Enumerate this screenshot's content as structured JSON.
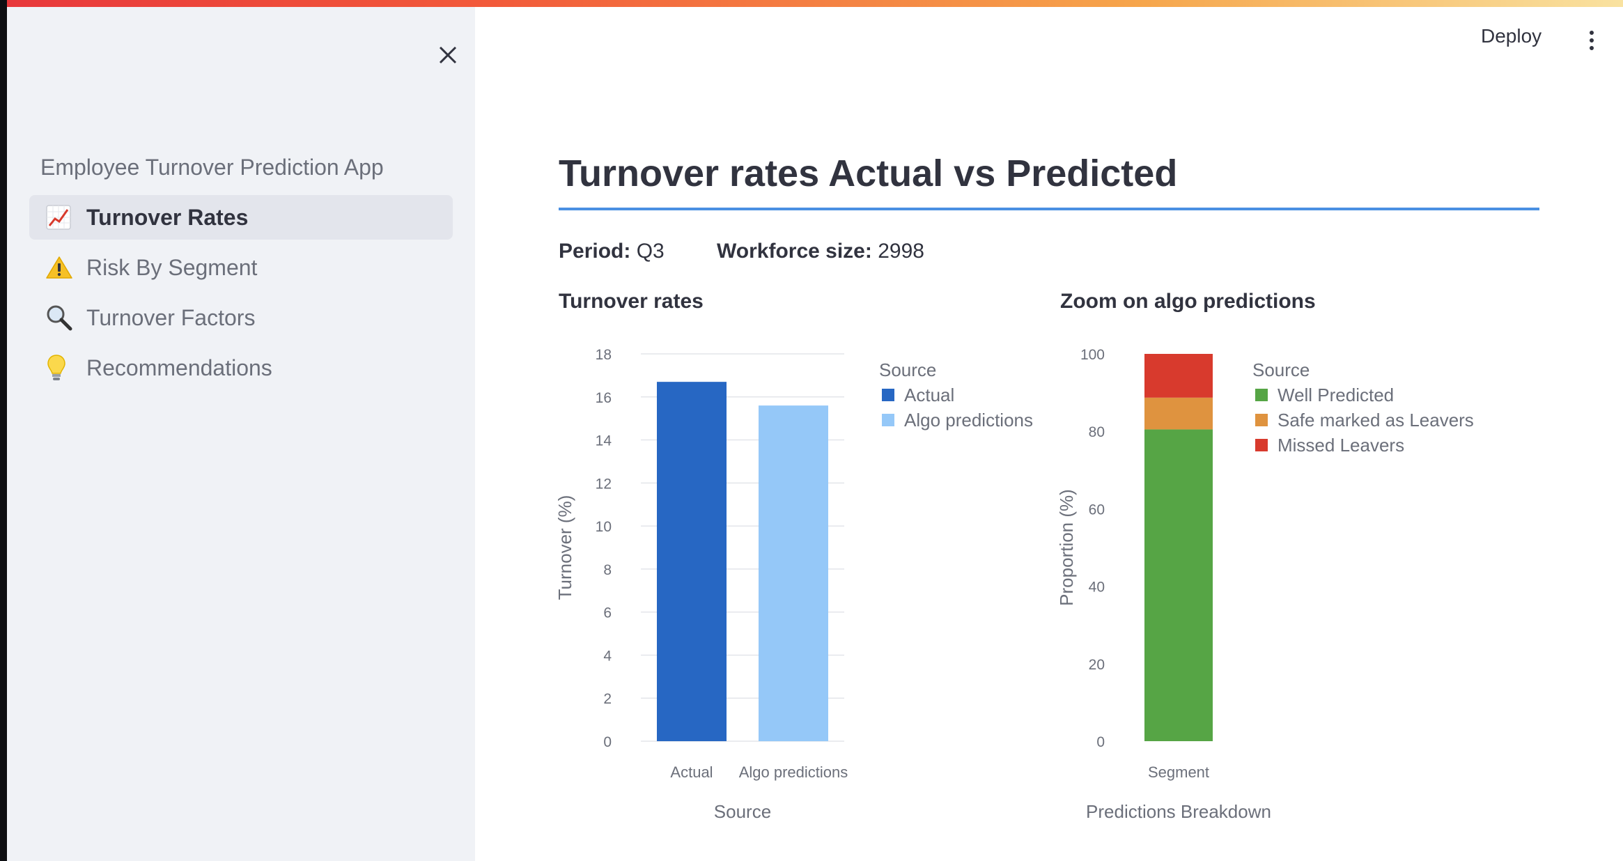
{
  "sidebar": {
    "app_title": "Employee Turnover Prediction App",
    "items": [
      {
        "icon": "chart-increasing-icon",
        "label": "Turnover Rates",
        "active": true
      },
      {
        "icon": "warning-icon",
        "label": "Risk By Segment",
        "active": false
      },
      {
        "icon": "magnifier-icon",
        "label": "Turnover Factors",
        "active": false
      },
      {
        "icon": "lightbulb-icon",
        "label": "Recommendations",
        "active": false
      }
    ]
  },
  "header": {
    "deploy_label": "Deploy"
  },
  "main": {
    "title": "Turnover rates Actual vs Predicted",
    "period_label": "Period:",
    "period_value": "Q3",
    "workforce_label": "Workforce size:",
    "workforce_value": "2998",
    "left_chart_title": "Turnover rates",
    "right_chart_title": "Zoom on algo predictions"
  },
  "colors": {
    "accent_rule": "#4a90e2",
    "actual": "#2767c3",
    "algo": "#95c8f8",
    "well_predicted": "#56a545",
    "safe_marked": "#df933f",
    "missed": "#d83a2d"
  },
  "chart_data": [
    {
      "type": "bar",
      "title": "Turnover rates",
      "categories": [
        "Actual",
        "Algo predictions"
      ],
      "values": [
        16.7,
        15.6
      ],
      "xlabel": "Source",
      "ylabel": "Turnover (%)",
      "ylim": [
        0,
        18
      ],
      "yticks": [
        0,
        2,
        4,
        6,
        8,
        10,
        12,
        14,
        16,
        18
      ],
      "grid": true,
      "legend": {
        "title": "Source",
        "entries": [
          "Actual",
          "Algo predictions"
        ],
        "placement": "right"
      }
    },
    {
      "type": "bar",
      "title": "Zoom on algo predictions",
      "stacked": true,
      "categories": [
        "Segment"
      ],
      "series": [
        {
          "name": "Well Predicted",
          "values": [
            80.5
          ]
        },
        {
          "name": "Safe marked as Leavers",
          "values": [
            8.2
          ]
        },
        {
          "name": "Missed Leavers",
          "values": [
            11.3
          ]
        }
      ],
      "xlabel": "Predictions Breakdown",
      "ylabel": "Proportion (%)",
      "ylim": [
        0,
        100
      ],
      "yticks": [
        0,
        20,
        40,
        60,
        80,
        100
      ],
      "grid": false,
      "legend": {
        "title": "Source",
        "entries": [
          "Well Predicted",
          "Safe marked as Leavers",
          "Missed Leavers"
        ],
        "placement": "right"
      }
    }
  ]
}
